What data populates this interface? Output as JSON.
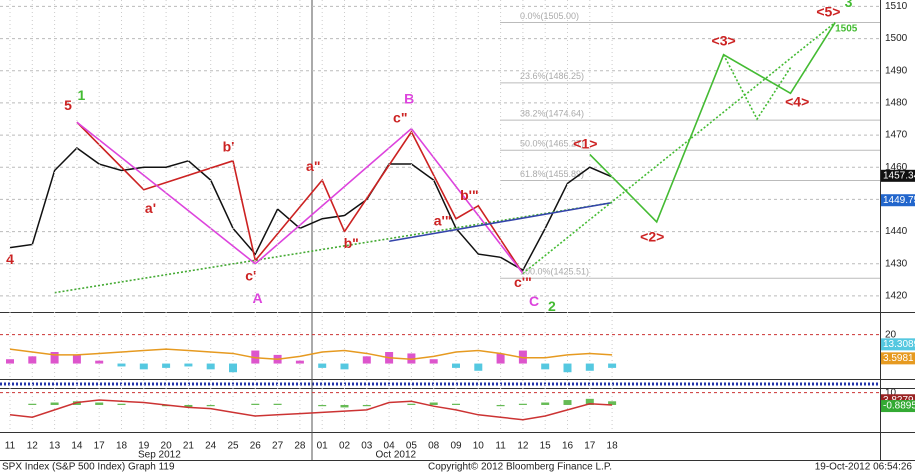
{
  "chart_data": [
    {
      "type": "line",
      "ylim": [
        1415,
        1512
      ],
      "yticks": [
        1420,
        1430,
        1440,
        1450,
        1460,
        1470,
        1480,
        1490,
        1500,
        1510
      ],
      "grid": true,
      "categories": [
        "11",
        "12",
        "13",
        "14",
        "17",
        "18",
        "19",
        "20",
        "21",
        "24",
        "25",
        "26",
        "27",
        "28",
        "01",
        "02",
        "03",
        "04",
        "05",
        "08",
        "09",
        "10",
        "11",
        "12",
        "15",
        "16",
        "17",
        "18",
        null,
        null,
        null,
        null,
        null,
        null,
        null,
        null,
        null,
        null,
        null,
        null
      ],
      "month_labels": [
        {
          "label": "Sep 2012",
          "x": 6.7
        },
        {
          "label": "Oct 2012",
          "x": 17.3
        }
      ],
      "series": [
        {
          "color": "#111111",
          "values": [
            1435,
            1436,
            1459,
            1466,
            1461,
            1459,
            1460,
            1460,
            1462,
            1456,
            1441,
            1433,
            1447,
            1441,
            1444,
            1445,
            1450,
            1461,
            1461,
            1456,
            1441,
            1433,
            1432,
            1428,
            1441,
            1455,
            1460,
            1457,
            null,
            null,
            null,
            null,
            null,
            null,
            null,
            null,
            null,
            null,
            null,
            null
          ]
        }
      ],
      "overlays": [
        {
          "color": "#44aa33",
          "style": "dotted",
          "x": [
            2,
            27
          ],
          "values": [
            1421,
            1449
          ]
        },
        {
          "color": "#cc2222",
          "style": "solid",
          "x": [
            3,
            6,
            10,
            11,
            14,
            15,
            18,
            20,
            21,
            23
          ],
          "values": [
            1474,
            1453,
            1462,
            1431,
            1456,
            1440,
            1471,
            1444,
            1448,
            1427
          ]
        },
        {
          "color": "#dd44dd",
          "style": "solid",
          "x": [
            3,
            11,
            18,
            23
          ],
          "values": [
            1474,
            1430,
            1472,
            1427
          ]
        },
        {
          "color": "#3344aa",
          "style": "solid",
          "x": [
            17,
            27
          ],
          "values": [
            1437,
            1449
          ]
        },
        {
          "color": "#44bb33",
          "style": "solid",
          "x": [
            26,
            29,
            32,
            35,
            37
          ],
          "values": [
            1464,
            1443,
            1495,
            1483,
            1505
          ]
        },
        {
          "color": "#44bb33",
          "style": "dotted",
          "x": [
            23,
            37
          ],
          "values": [
            1427,
            1505
          ]
        },
        {
          "color": "#44bb33",
          "style": "dotted",
          "x": [
            32,
            33.5,
            35
          ],
          "values": [
            1495,
            1475,
            1491
          ]
        }
      ],
      "fib_levels": [
        {
          "value": 1505,
          "label": "0.0%(1505.00)"
        },
        {
          "value": 1486.25,
          "label": "23.6%(1486.25)"
        },
        {
          "value": 1474.64,
          "label": "38.2%(1474.64)"
        },
        {
          "value": 1465.27,
          "label": "50.0%(1465.27)"
        },
        {
          "value": 1455.89,
          "label": "61.8%(1455.89)"
        },
        {
          "value": 1425.51,
          "label": "100.0%(1425.51)"
        }
      ],
      "annotations": [
        {
          "label": "4",
          "x": 0,
          "y": 1431,
          "color": "#cc2222"
        },
        {
          "label": "5",
          "x": 2.6,
          "y": 1479,
          "color": "#cc2222"
        },
        {
          "label": "1",
          "x": 3.2,
          "y": 1482,
          "color": "#44bb33"
        },
        {
          "label": "a'",
          "x": 6.3,
          "y": 1447,
          "color": "#cc2222"
        },
        {
          "label": "b'",
          "x": 9.8,
          "y": 1466,
          "color": "#cc2222"
        },
        {
          "label": "c'",
          "x": 10.8,
          "y": 1426,
          "color": "#cc2222"
        },
        {
          "label": "A",
          "x": 11.1,
          "y": 1419,
          "color": "#dd44dd"
        },
        {
          "label": "a\"",
          "x": 13.6,
          "y": 1460,
          "color": "#cc2222"
        },
        {
          "label": "b\"",
          "x": 15.3,
          "y": 1436,
          "color": "#cc2222"
        },
        {
          "label": "B",
          "x": 17.9,
          "y": 1481,
          "color": "#dd44dd"
        },
        {
          "label": "c\"",
          "x": 17.5,
          "y": 1475,
          "color": "#cc2222"
        },
        {
          "label": "b'\"",
          "x": 20.6,
          "y": 1451,
          "color": "#cc2222"
        },
        {
          "label": "a'\"",
          "x": 19.4,
          "y": 1443,
          "color": "#cc2222"
        },
        {
          "label": "c'\"",
          "x": 23,
          "y": 1424,
          "color": "#cc2222"
        },
        {
          "label": "C",
          "x": 23.5,
          "y": 1418,
          "color": "#dd44dd"
        },
        {
          "label": "2",
          "x": 24.3,
          "y": 1416.5,
          "color": "#44bb33"
        },
        {
          "label": "<1>",
          "x": 25.8,
          "y": 1467,
          "color": "#cc2222"
        },
        {
          "label": "<2>",
          "x": 28.8,
          "y": 1438,
          "color": "#cc2222"
        },
        {
          "label": "<3>",
          "x": 32,
          "y": 1499,
          "color": "#cc2222"
        },
        {
          "label": "<4>",
          "x": 35.3,
          "y": 1480,
          "color": "#cc2222"
        },
        {
          "label": "<5>",
          "x": 36.7,
          "y": 1508,
          "color": "#cc2222"
        },
        {
          "label": "3",
          "x": 37.6,
          "y": 1511,
          "color": "#44bb33"
        },
        {
          "label": "1505",
          "x": 37.5,
          "y": 1503,
          "color": "#44bb33"
        }
      ],
      "last_labels": [
        {
          "value": 1457.34,
          "color": "#111111"
        },
        {
          "value": 1449.75,
          "color": "#2266cc"
        }
      ]
    },
    {
      "type": "bar",
      "ylim": [
        -10,
        35
      ],
      "yticks": [
        20
      ],
      "grid": true,
      "positive_color": "#dd55cc",
      "series": [
        {
          "type": "bar",
          "color": "#55c8e0",
          "values": [
            3,
            5,
            8,
            6,
            2,
            -2,
            -4,
            -3,
            -2,
            -4,
            -6,
            9,
            6,
            2,
            -3,
            -4,
            5,
            8,
            7,
            3,
            -3,
            -5,
            7,
            9,
            -4,
            -6,
            -5,
            -3
          ]
        },
        {
          "type": "line",
          "color": "#e69a20",
          "values": [
            10,
            8,
            6,
            6,
            7,
            8,
            9,
            10,
            9,
            8,
            7,
            4,
            3,
            5,
            8,
            9,
            7,
            4,
            3,
            5,
            8,
            9,
            7,
            4,
            4,
            6,
            7,
            6
          ]
        }
      ],
      "last_labels": [
        {
          "value": 3.5981,
          "color": "#e69a20"
        },
        {
          "value": 13.3089,
          "color": "#55c8e0"
        }
      ]
    },
    {
      "type": "bar",
      "ylim": [
        -22,
        13
      ],
      "yticks": [
        10
      ],
      "grid": true,
      "positive_color": "#66bb55",
      "series": [
        {
          "type": "bar",
          "color": "#66bb55",
          "values": [
            0,
            1,
            2,
            3,
            2,
            1,
            0,
            -1,
            -2,
            -1,
            0,
            1,
            1,
            0,
            -1,
            -2,
            -1,
            0,
            1,
            2,
            1,
            0,
            -1,
            1,
            2,
            4,
            5,
            3
          ]
        },
        {
          "type": "line",
          "color": "#cc3333",
          "values": [
            -8,
            -10,
            -4,
            2,
            4,
            3,
            2,
            0,
            -2,
            -3,
            -6,
            -9,
            -8,
            -7,
            -6,
            -5,
            -4,
            2,
            3,
            -1,
            -4,
            -8,
            -10,
            -12,
            -9,
            -4,
            1,
            0
          ]
        }
      ],
      "last_labels": [
        {
          "value": 3.8279,
          "color": "#992222"
        },
        {
          "value": -0.8895,
          "color": "#33aa33"
        }
      ]
    }
  ],
  "footer": {
    "left": "SPX Index (S&P 500 Index) Graph 119",
    "center": "Copyright© 2012 Bloomberg Finance L.P.",
    "right": "19-Oct-2012 06:54:26"
  }
}
